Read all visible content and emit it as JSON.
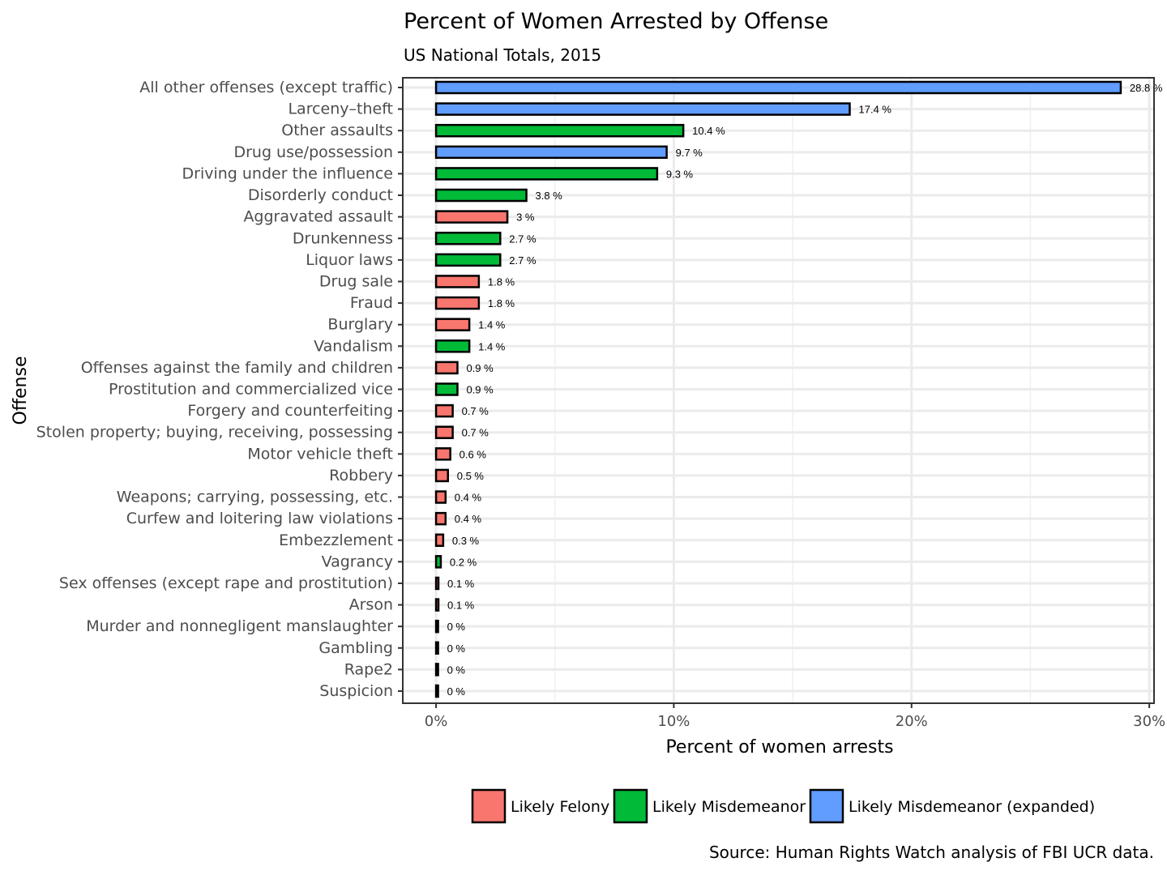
{
  "chart_data": {
    "type": "bar",
    "orientation": "horizontal",
    "title": "Percent of Women Arrested by Offense",
    "subtitle": "US National Totals, 2015",
    "xlabel": "Percent of women arrests",
    "ylabel": "Offense",
    "caption": "Source: Human Rights Watch analysis of FBI UCR data.",
    "xlim": [
      -1.4,
      30.2
    ],
    "xticks": [
      0,
      10,
      20,
      30
    ],
    "xtick_labels": [
      "0%",
      "10%",
      "20%",
      "30%"
    ],
    "grid": true,
    "legend_position": "bottom",
    "legend": [
      {
        "key": "felony",
        "label": "Likely Felony",
        "color": "#F8766D"
      },
      {
        "key": "misd",
        "label": "Likely Misdemeanor",
        "color": "#00BA38"
      },
      {
        "key": "expanded",
        "label": "Likely Misdemeanor (expanded)",
        "color": "#619CFF"
      }
    ],
    "categories": [
      "All other offenses (except traffic)",
      "Larceny–theft",
      "Other assaults",
      "Drug use/possession",
      "Driving under the influence",
      "Disorderly conduct",
      "Aggravated assault",
      "Drunkenness",
      "Liquor laws",
      "Drug sale",
      "Fraud",
      "Burglary",
      "Vandalism",
      "Offenses against the family and children",
      "Prostitution and commercialized vice",
      "Forgery and counterfeiting",
      "Stolen property; buying, receiving, possessing",
      "Motor vehicle theft",
      "Robbery",
      "Weapons; carrying, possessing, etc.",
      "Curfew and loitering law violations",
      "Embezzlement",
      "Vagrancy",
      "Sex offenses (except rape and prostitution)",
      "Arson",
      "Murder and nonnegligent manslaughter",
      "Gambling",
      "Rape2",
      "Suspicion"
    ],
    "values": [
      28.8,
      17.4,
      10.4,
      9.7,
      9.3,
      3.8,
      3,
      2.7,
      2.7,
      1.8,
      1.8,
      1.4,
      1.4,
      0.9,
      0.9,
      0.7,
      0.7,
      0.6,
      0.5,
      0.4,
      0.4,
      0.3,
      0.2,
      0.1,
      0.1,
      0,
      0,
      0,
      0
    ],
    "data_labels": [
      "28.8 %",
      "17.4 %",
      "10.4 %",
      "9.7 %",
      "9.3 %",
      "3.8 %",
      "3 %",
      "2.7 %",
      "2.7 %",
      "1.8 %",
      "1.8 %",
      "1.4 %",
      "1.4 %",
      "0.9 %",
      "0.9 %",
      "0.7 %",
      "0.7 %",
      "0.6 %",
      "0.5 %",
      "0.4 %",
      "0.4 %",
      "0.3 %",
      "0.2 %",
      "0.1 %",
      "0.1 %",
      "0 %",
      "0 %",
      "0 %",
      "0 %"
    ],
    "groups": [
      "expanded",
      "expanded",
      "misd",
      "expanded",
      "misd",
      "misd",
      "felony",
      "misd",
      "misd",
      "felony",
      "felony",
      "felony",
      "misd",
      "felony",
      "misd",
      "felony",
      "felony",
      "felony",
      "felony",
      "felony",
      "felony",
      "felony",
      "misd",
      "felony",
      "felony",
      "felony",
      "misd",
      "felony",
      "misd"
    ]
  }
}
